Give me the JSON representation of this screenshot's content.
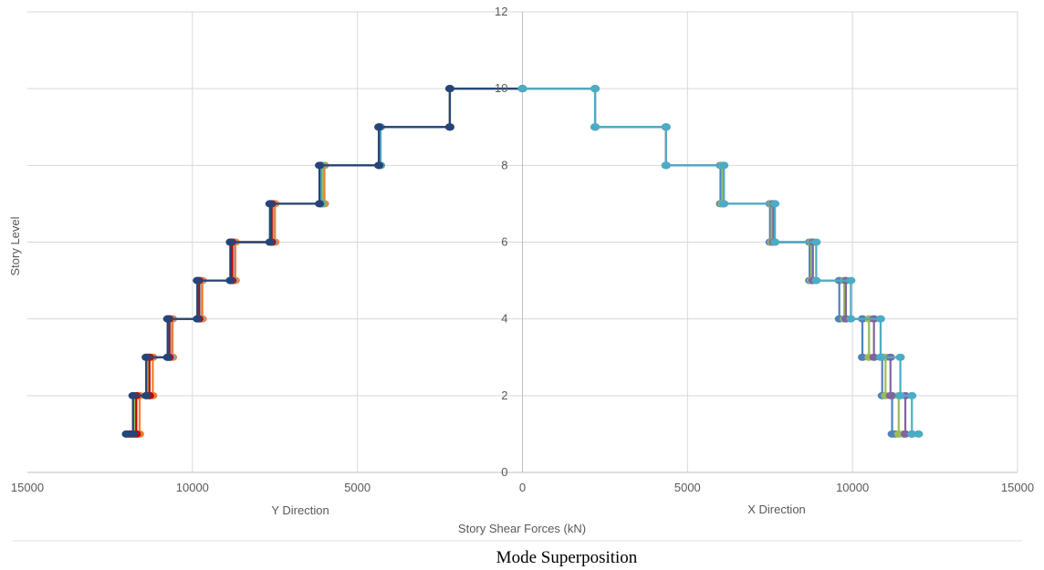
{
  "chart_data": {
    "type": "line",
    "xlim": [
      -15000,
      15000
    ],
    "ylim": [
      0,
      12
    ],
    "x_tick_values": [
      -15000,
      -10000,
      -5000,
      0,
      5000,
      10000,
      15000
    ],
    "x_tick_labels": [
      "15000",
      "10000",
      "5000",
      "0",
      "5000",
      "10000",
      "15000"
    ],
    "y_tick_values": [
      0,
      2,
      4,
      6,
      8,
      10,
      12
    ],
    "y_tick_labels": [
      "0",
      "2",
      "4",
      "6",
      "8",
      "10",
      "12"
    ],
    "ylabel": "Story Level",
    "xlabel": "Story Shear Forces (kN)",
    "left_direction_label": "Y Direction",
    "right_direction_label": "X Direction",
    "caption": "Mode Superposition",
    "grid": true,
    "legend": "none",
    "levels": [
      10,
      9,
      8,
      7,
      6,
      5,
      4,
      3,
      2,
      1
    ],
    "series": [
      {
        "color": "#ed7d31",
        "shear": [
          -2200,
          -4300,
          -6000,
          -7500,
          -8700,
          -9700,
          -10600,
          -11200,
          -11600,
          -11800
        ]
      },
      {
        "color": "#a5a5a5",
        "shear": [
          -2200,
          -4300,
          -6050,
          -7550,
          -8750,
          -9750,
          -10650,
          -11300,
          -11700,
          -11900
        ]
      },
      {
        "color": "#9bbb59",
        "shear": [
          -2200,
          -4350,
          -6050,
          -7600,
          -8800,
          -9800,
          -10700,
          -11350,
          -11750,
          -11950
        ]
      },
      {
        "color": "#c00000",
        "shear": [
          -2200,
          -4350,
          -6100,
          -7600,
          -8800,
          -9800,
          -10700,
          -11300,
          -11700,
          -11900
        ]
      },
      {
        "color": "#4bacc6",
        "shear": [
          -2200,
          -4300,
          -6100,
          -7650,
          -8850,
          -9850,
          -10750,
          -11400,
          -11800,
          -12000
        ]
      },
      {
        "color": "#264478",
        "shear": [
          -2200,
          -4350,
          -6150,
          -7650,
          -8850,
          -9850,
          -10750,
          -11400,
          -11800,
          -12000
        ]
      },
      {
        "color": "#4f81bd",
        "shear": [
          2200,
          4350,
          6000,
          7500,
          8700,
          9600,
          10300,
          10900,
          11200,
          11300
        ]
      },
      {
        "color": "#9bbb59",
        "shear": [
          2200,
          4350,
          6050,
          7550,
          8750,
          9750,
          10500,
          11000,
          11400,
          11550
        ]
      },
      {
        "color": "#8064a2",
        "shear": [
          2200,
          4350,
          6100,
          7600,
          8800,
          9800,
          10650,
          11150,
          11600,
          11800
        ]
      },
      {
        "color": "#4bacc6",
        "shear": [
          2200,
          4350,
          6100,
          7650,
          8900,
          9950,
          10850,
          11450,
          11800,
          12000
        ]
      }
    ]
  }
}
